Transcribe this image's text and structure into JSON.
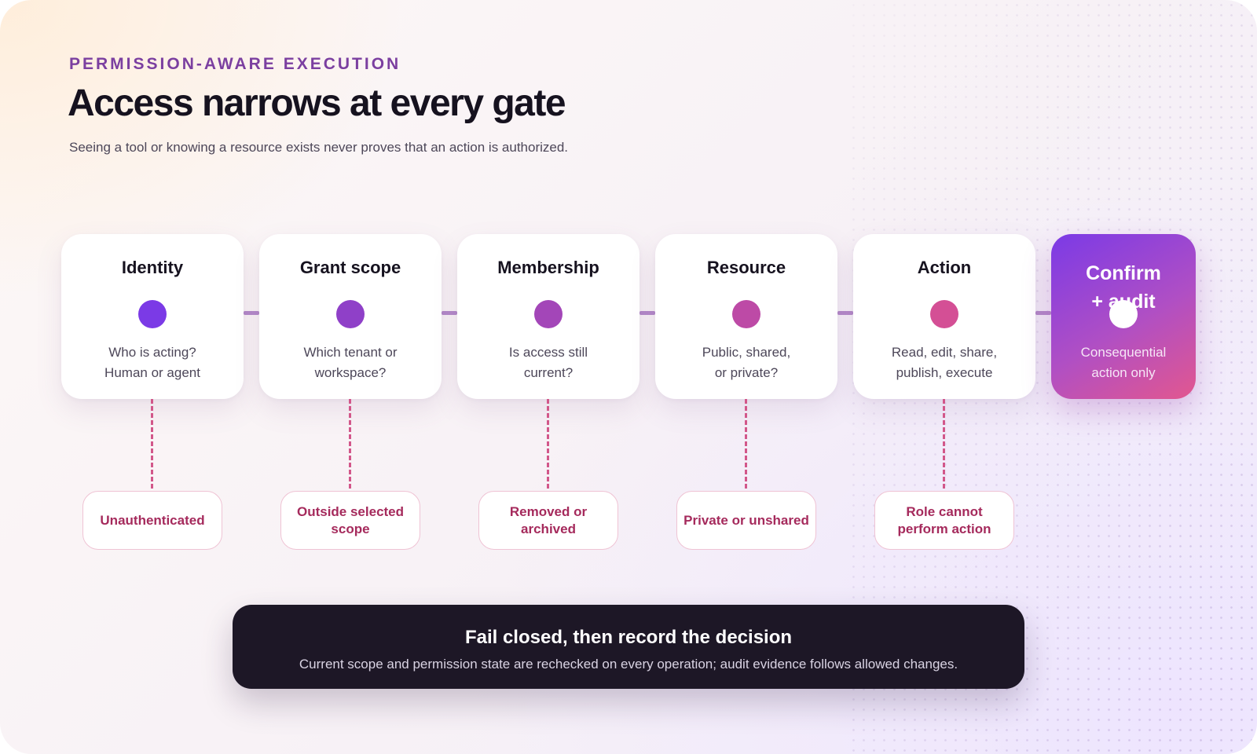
{
  "header": {
    "eyebrow": "PERMISSION-AWARE EXECUTION",
    "title": "Access narrows at every gate",
    "subtitle": "Seeing a tool or knowing a resource exists never proves that an action is authorized."
  },
  "gates": [
    {
      "title": "Identity",
      "line1": "Who is acting?",
      "line2": "Human or agent",
      "dot_color": "#7b3ae6",
      "fail": "Unauthenticated"
    },
    {
      "title": "Grant scope",
      "line1": "Which tenant or",
      "line2": "workspace?",
      "dot_color": "#8f40c8",
      "fail": "Outside selected scope"
    },
    {
      "title": "Membership",
      "line1": "Is access still",
      "line2": "current?",
      "dot_color": "#a346b8",
      "fail": "Removed or archived"
    },
    {
      "title": "Resource",
      "line1": "Public, shared,",
      "line2": "or private?",
      "dot_color": "#bd4aa6",
      "fail": "Private or unshared"
    },
    {
      "title": "Action",
      "line1": "Read, edit, share,",
      "line2": "publish, execute",
      "dot_color": "#d44f95",
      "fail": "Role cannot perform action"
    }
  ],
  "final_gate": {
    "title_line1": "Confirm",
    "title_line2": "+ audit",
    "line1": "Consequential",
    "line2": "action only"
  },
  "banner": {
    "title": "Fail closed, then record the decision",
    "description": "Current scope and permission state are rechecked on every operation; audit evidence follows allowed changes."
  },
  "colors": {
    "accent": "#7b3fa0",
    "fail_text": "#a52a5c",
    "banner_bg": "#1d1726"
  }
}
